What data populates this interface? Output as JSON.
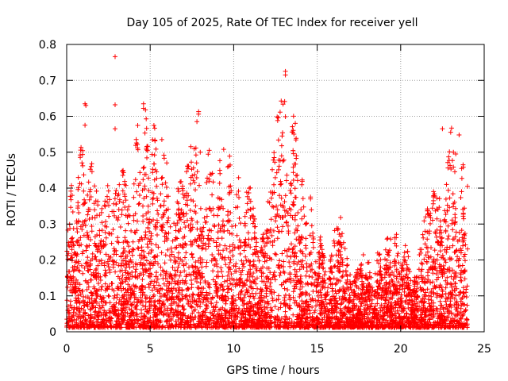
{
  "chart_data": {
    "type": "scatter",
    "title": "Day 105 of 2025, Rate Of TEC Index for receiver yell",
    "xlabel": "GPS time / hours",
    "ylabel": "ROTI / TECUs",
    "xlim": [
      0,
      25
    ],
    "ylim": [
      0,
      0.8
    ],
    "xticks": [
      "0",
      "5",
      "10",
      "15",
      "20",
      "25"
    ],
    "yticks": [
      "0",
      "0.1",
      "0.2",
      "0.3",
      "0.4",
      "0.5",
      "0.6",
      "0.7",
      "0.8"
    ],
    "xtick_values": [
      0,
      5,
      10,
      15,
      20,
      25
    ],
    "ytick_values": [
      0,
      0.1,
      0.2,
      0.3,
      0.4,
      0.5,
      0.6,
      0.7,
      0.8
    ],
    "grid": true,
    "marker": "+",
    "marker_color": "#ff0000",
    "series": [
      {
        "name": "ROTI",
        "description_hours": [
          0,
          24
        ],
        "envelope": [
          {
            "x": 0.0,
            "upper": 0.42
          },
          {
            "x": 0.5,
            "upper": 0.4
          },
          {
            "x": 1.1,
            "upper": 0.64
          },
          {
            "x": 2.0,
            "upper": 0.33
          },
          {
            "x": 2.8,
            "upper": 0.77
          },
          {
            "x": 3.5,
            "upper": 0.4
          },
          {
            "x": 4.5,
            "upper": 0.63
          },
          {
            "x": 5.8,
            "upper": 0.53
          },
          {
            "x": 7.0,
            "upper": 0.42
          },
          {
            "x": 7.8,
            "upper": 0.61
          },
          {
            "x": 9.0,
            "upper": 0.46
          },
          {
            "x": 9.5,
            "upper": 0.51
          },
          {
            "x": 11.0,
            "upper": 0.4
          },
          {
            "x": 12.0,
            "upper": 0.43
          },
          {
            "x": 13.1,
            "upper": 0.73
          },
          {
            "x": 14.5,
            "upper": 0.37
          },
          {
            "x": 15.5,
            "upper": 0.22
          },
          {
            "x": 16.5,
            "upper": 0.32
          },
          {
            "x": 18.0,
            "upper": 0.2
          },
          {
            "x": 19.5,
            "upper": 0.28
          },
          {
            "x": 21.0,
            "upper": 0.2
          },
          {
            "x": 22.5,
            "upper": 0.57
          },
          {
            "x": 23.5,
            "upper": 0.55
          },
          {
            "x": 24.0,
            "upper": 0.41
          }
        ],
        "highlights": [
          {
            "x": 2.9,
            "y": 0.766
          },
          {
            "x": 13.1,
            "y": 0.725
          },
          {
            "x": 13.1,
            "y": 0.715
          },
          {
            "x": 1.1,
            "y": 0.635
          },
          {
            "x": 1.15,
            "y": 0.63
          },
          {
            "x": 2.9,
            "y": 0.632
          },
          {
            "x": 4.6,
            "y": 0.635
          },
          {
            "x": 4.6,
            "y": 0.622
          },
          {
            "x": 13.05,
            "y": 0.641
          },
          {
            "x": 7.9,
            "y": 0.613
          },
          {
            "x": 7.9,
            "y": 0.606
          },
          {
            "x": 13.1,
            "y": 0.599
          },
          {
            "x": 7.8,
            "y": 0.585
          },
          {
            "x": 1.1,
            "y": 0.575
          },
          {
            "x": 22.5,
            "y": 0.565
          },
          {
            "x": 2.9,
            "y": 0.565
          },
          {
            "x": 12.9,
            "y": 0.545
          },
          {
            "x": 23.5,
            "y": 0.548
          },
          {
            "x": 5.7,
            "y": 0.535
          },
          {
            "x": 9.4,
            "y": 0.508
          },
          {
            "x": 23.3,
            "y": 0.495
          },
          {
            "x": 8.0,
            "y": 0.5
          },
          {
            "x": 24.0,
            "y": 0.405
          },
          {
            "x": 14.6,
            "y": 0.375
          },
          {
            "x": 14.6,
            "y": 0.37
          },
          {
            "x": 16.4,
            "y": 0.318
          },
          {
            "x": 19.4,
            "y": 0.258
          },
          {
            "x": 20.2,
            "y": 0.208
          }
        ]
      }
    ]
  }
}
